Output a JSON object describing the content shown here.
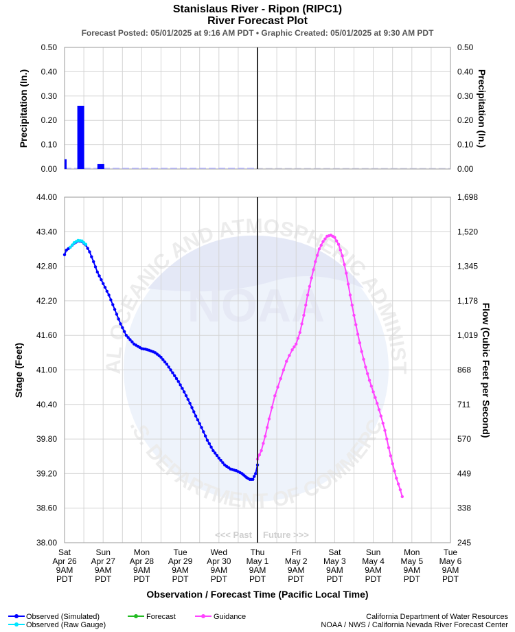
{
  "header": {
    "title": "Stanislaus River - Ripon (RIPC1)",
    "subtitle": "River Forecast Plot",
    "posted": "Forecast Posted: 05/01/2025 at 9:16 AM PDT  •  Graphic Created: 05/01/2025 at 9:30 AM PDT"
  },
  "watermark": {
    "logo_text": "NOAA",
    "ring_top": "NATIONAL OCEANIC AND ATMOSPHERIC ADMINISTRATION",
    "ring_bottom": "U.S. DEPARTMENT OF COMMERCE"
  },
  "labels": {
    "past": "<<< Past",
    "future": "Future >>>",
    "x_axis": "Observation / Forecast Time (Pacific Local Time)",
    "precip_left": "Precipitation (In.)",
    "precip_right": "Precipitation (In.)",
    "stage": "Stage (Feet)",
    "flow": "Flow (Cubic Feet per Second)"
  },
  "legend": {
    "items": [
      {
        "label": "Observed (Simulated)",
        "color": "#0000ff"
      },
      {
        "label": "Observed (Raw Gauge)",
        "color": "#00e5ff"
      },
      {
        "label": "Forecast",
        "color": "#22bb22"
      },
      {
        "label": "Guidance",
        "color": "#ff44ff"
      }
    ]
  },
  "credits": {
    "line1": "California Department of Water Resources",
    "line2": "NOAA / NWS / California Nevada River Forecast Center"
  },
  "chart_data": [
    {
      "type": "bar",
      "title": "Precipitation",
      "ylabel": "Precipitation (In.)",
      "ylim": [
        0,
        0.5
      ],
      "y_ticks": [
        "0.00",
        "0.10",
        "0.20",
        "0.30",
        "0.40",
        "0.50"
      ],
      "x_days": [
        0,
        4.96
      ],
      "bars": [
        {
          "day": 0.0,
          "value": 0.04
        },
        {
          "day": 0.42,
          "value": 0.26
        },
        {
          "day": 0.94,
          "value": 0.02
        }
      ],
      "color": "#0000ff"
    },
    {
      "type": "line",
      "title": "Stage / Flow",
      "ylabel": "Stage (Feet)",
      "y2label": "Flow (Cubic Feet per Second)",
      "ylim": [
        38.0,
        44.0
      ],
      "y_ticks": [
        "38.00",
        "38.60",
        "39.20",
        "39.80",
        "40.40",
        "41.00",
        "41.60",
        "42.20",
        "42.80",
        "43.40",
        "44.00"
      ],
      "y2_ticks": [
        "245",
        "338",
        "449",
        "570",
        "711",
        "868",
        "1,019",
        "1,178",
        "1,345",
        "1,520",
        "1,698"
      ],
      "x_ticks": [
        {
          "day": "Sat",
          "date": "Apr 26",
          "time": "9AM",
          "tz": "PDT"
        },
        {
          "day": "Sun",
          "date": "Apr 27",
          "time": "9AM",
          "tz": "PDT"
        },
        {
          "day": "Mon",
          "date": "Apr 28",
          "time": "9AM",
          "tz": "PDT"
        },
        {
          "day": "Tue",
          "date": "Apr 29",
          "time": "9AM",
          "tz": "PDT"
        },
        {
          "day": "Wed",
          "date": "Apr 30",
          "time": "9AM",
          "tz": "PDT"
        },
        {
          "day": "Thu",
          "date": "May 1",
          "time": "9AM",
          "tz": "PDT"
        },
        {
          "day": "Fri",
          "date": "May 2",
          "time": "9AM",
          "tz": "PDT"
        },
        {
          "day": "Sat",
          "date": "May 3",
          "time": "9AM",
          "tz": "PDT"
        },
        {
          "day": "Sun",
          "date": "May 4",
          "time": "9AM",
          "tz": "PDT"
        },
        {
          "day": "Mon",
          "date": "May 5",
          "time": "9AM",
          "tz": "PDT"
        },
        {
          "day": "Tue",
          "date": "May 6",
          "time": "9AM",
          "tz": "PDT"
        }
      ],
      "now_day": 5.0,
      "series": [
        {
          "name": "Observed (Simulated)",
          "color": "#0000ff",
          "points": [
            [
              0,
              43.0
            ],
            [
              0.05,
              43.08
            ],
            [
              0.15,
              43.13
            ],
            [
              0.25,
              43.2
            ],
            [
              0.35,
              43.24
            ],
            [
              0.45,
              43.23
            ],
            [
              0.55,
              43.17
            ],
            [
              0.65,
              43.05
            ],
            [
              0.75,
              42.88
            ],
            [
              0.85,
              42.7
            ],
            [
              1.0,
              42.5
            ],
            [
              1.15,
              42.3
            ],
            [
              1.3,
              42.05
            ],
            [
              1.45,
              41.8
            ],
            [
              1.6,
              41.6
            ],
            [
              1.8,
              41.45
            ],
            [
              2.0,
              41.37
            ],
            [
              2.1,
              41.36
            ],
            [
              2.2,
              41.34
            ],
            [
              2.35,
              41.3
            ],
            [
              2.5,
              41.22
            ],
            [
              2.65,
              41.1
            ],
            [
              2.8,
              40.95
            ],
            [
              2.95,
              40.8
            ],
            [
              3.1,
              40.62
            ],
            [
              3.25,
              40.42
            ],
            [
              3.4,
              40.2
            ],
            [
              3.55,
              40.0
            ],
            [
              3.7,
              39.78
            ],
            [
              3.85,
              39.6
            ],
            [
              4.0,
              39.47
            ],
            [
              4.15,
              39.35
            ],
            [
              4.3,
              39.28
            ],
            [
              4.45,
              39.25
            ],
            [
              4.6,
              39.2
            ],
            [
              4.72,
              39.13
            ],
            [
              4.8,
              39.1
            ],
            [
              4.88,
              39.1
            ],
            [
              4.95,
              39.2
            ],
            [
              5.0,
              39.35
            ]
          ]
        },
        {
          "name": "Observed (Raw Gauge)",
          "color": "#00e5ff",
          "points": [
            [
              0.15,
              43.13
            ],
            [
              0.25,
              43.21
            ],
            [
              0.35,
              43.25
            ],
            [
              0.45,
              43.24
            ],
            [
              0.55,
              43.18
            ]
          ]
        },
        {
          "name": "Guidance",
          "color": "#ff44ff",
          "points": [
            [
              5.0,
              39.45
            ],
            [
              5.1,
              39.6
            ],
            [
              5.2,
              39.85
            ],
            [
              5.3,
              40.15
            ],
            [
              5.45,
              40.55
            ],
            [
              5.6,
              40.85
            ],
            [
              5.75,
              41.15
            ],
            [
              5.9,
              41.35
            ],
            [
              6.0,
              41.45
            ],
            [
              6.1,
              41.65
            ],
            [
              6.2,
              41.95
            ],
            [
              6.3,
              42.3
            ],
            [
              6.4,
              42.6
            ],
            [
              6.5,
              42.88
            ],
            [
              6.6,
              43.1
            ],
            [
              6.7,
              43.23
            ],
            [
              6.8,
              43.32
            ],
            [
              6.9,
              43.34
            ],
            [
              7.0,
              43.3
            ],
            [
              7.1,
              43.18
            ],
            [
              7.2,
              42.98
            ],
            [
              7.3,
              42.68
            ],
            [
              7.4,
              42.3
            ],
            [
              7.5,
              41.95
            ],
            [
              7.6,
              41.62
            ],
            [
              7.7,
              41.32
            ],
            [
              7.8,
              41.05
            ],
            [
              7.9,
              40.82
            ],
            [
              8.0,
              40.62
            ],
            [
              8.1,
              40.42
            ],
            [
              8.2,
              40.2
            ],
            [
              8.3,
              39.95
            ],
            [
              8.4,
              39.65
            ],
            [
              8.5,
              39.37
            ],
            [
              8.6,
              39.12
            ],
            [
              8.7,
              38.92
            ],
            [
              8.75,
              38.8
            ]
          ]
        }
      ]
    }
  ]
}
